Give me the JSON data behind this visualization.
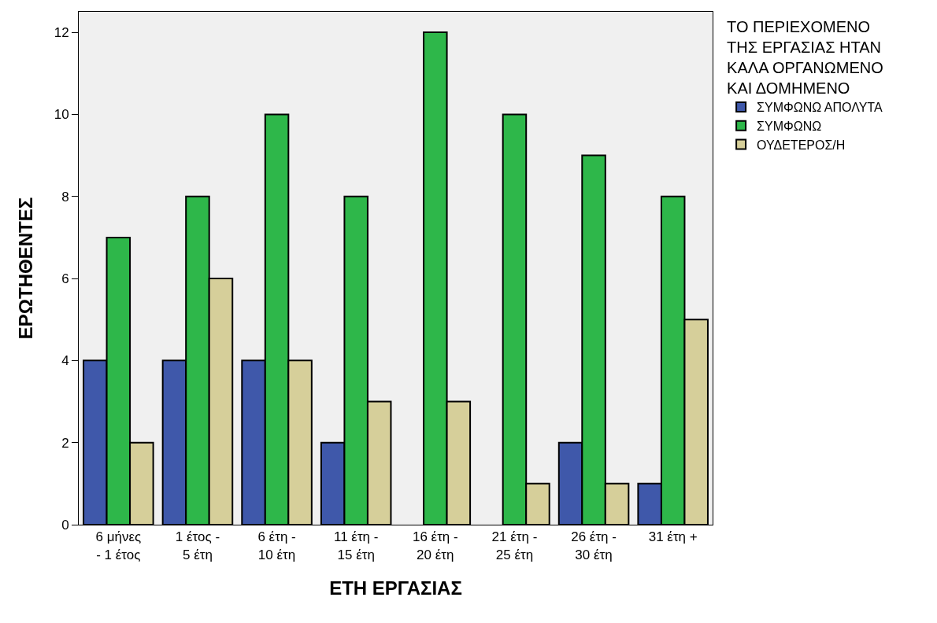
{
  "chart_data": {
    "type": "bar",
    "xlabel": "ΕΤΗ ΕΡΓΑΣΙΑΣ",
    "ylabel": "ΕΡΩΤΗΘΕΝΤΕΣ",
    "legend_title": "ΤΟ ΠΕΡΙΕΧΟΜΕΝΟ ΤΗΣ ΕΡΓΑΣΙΑΣ ΗΤΑΝ ΚΑΛΑ ΟΡΓΑΝΩΜΕΝΟ ΚΑΙ ΔΟΜΗΜΕΝΟ",
    "categories": [
      "6 μήνες - 1 έτος",
      "1 έτος - 5 έτη",
      "6 έτη - 10 έτη",
      "11 έτη - 15 έτη",
      "16 έτη - 20 έτη",
      "21 έτη - 25 έτη",
      "26 έτη - 30 έτη",
      "31 έτη +"
    ],
    "series": [
      {
        "name": "ΣΥΜΦΩΝΩ ΑΠΟΛΥΤΑ",
        "color": "#3f58aa",
        "values": [
          4,
          4,
          4,
          2,
          null,
          null,
          2,
          1
        ]
      },
      {
        "name": "ΣΥΜΦΩΝΩ",
        "color": "#2eb74a",
        "values": [
          7,
          8,
          10,
          8,
          12,
          10,
          9,
          8
        ]
      },
      {
        "name": "ΟΥΔΕΤΕΡΟΣ/Η",
        "color": "#d6cf9a",
        "values": [
          2,
          6,
          4,
          3,
          3,
          1,
          1,
          5
        ]
      }
    ],
    "ylim": [
      0,
      12.5
    ],
    "yticks": [
      0,
      2,
      4,
      6,
      8,
      10,
      12
    ],
    "grid": false,
    "legend": "top right"
  }
}
